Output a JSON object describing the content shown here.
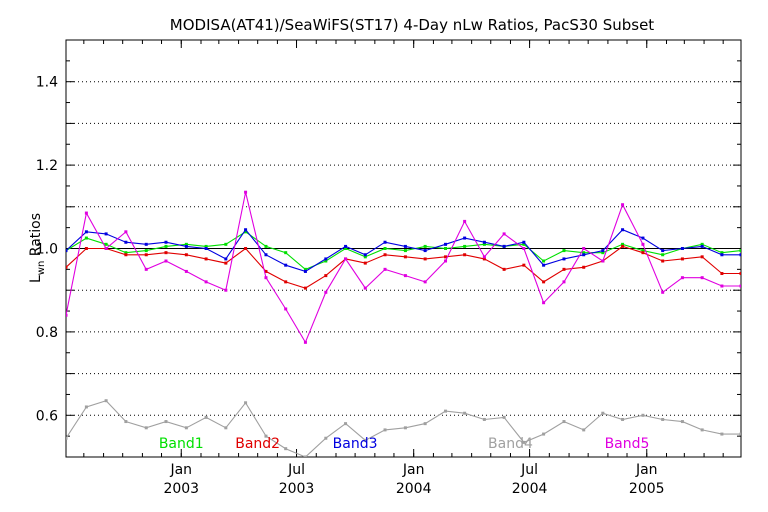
{
  "chart_data": {
    "type": "line",
    "title": "MODISA(AT41)/SeaWiFS(ST17) 4-Day nLw Ratios, PacS30 Subset",
    "ylabel": {
      "base": "L",
      "sub": "wn",
      "rest": " Ratios"
    },
    "ylim": [
      0.5,
      1.5
    ],
    "xlim": [
      "2002-07-04",
      "2005-05-29"
    ],
    "yticks": [
      "0.6",
      "0.8",
      "1.0",
      "1.2",
      "1.4"
    ],
    "xticks": [
      {
        "date": "2003-01-01",
        "month": "Jan",
        "year": "2003"
      },
      {
        "date": "2003-07-01",
        "month": "Jul",
        "year": "2003"
      },
      {
        "date": "2004-01-01",
        "month": "Jan",
        "year": "2004"
      },
      {
        "date": "2004-07-01",
        "month": "Jul",
        "year": "2004"
      },
      {
        "date": "2005-01-01",
        "month": "Jan",
        "year": "2005"
      }
    ],
    "grid": "horizontal dotted",
    "reference_line": 1.0,
    "x": [
      "2002-07-04",
      "2002-08-05",
      "2002-09-05",
      "2002-10-06",
      "2002-11-07",
      "2002-12-08",
      "2003-01-09",
      "2003-02-09",
      "2003-03-12",
      "2003-04-12",
      "2003-05-14",
      "2003-06-14",
      "2003-07-15",
      "2003-08-16",
      "2003-09-16",
      "2003-10-17",
      "2003-11-17",
      "2003-12-19",
      "2004-01-19",
      "2004-02-20",
      "2004-03-21",
      "2004-04-21",
      "2004-05-22",
      "2004-06-22",
      "2004-07-23",
      "2004-08-24",
      "2004-09-24",
      "2004-10-24",
      "2004-11-24",
      "2004-12-26",
      "2005-01-26",
      "2005-02-26",
      "2005-03-29",
      "2005-04-29",
      "2005-05-29"
    ],
    "series": [
      {
        "name": "Band1",
        "color": "#00e000",
        "label_pos": "2003-01-01",
        "values": [
          0.995,
          1.025,
          1.01,
          0.99,
          0.995,
          1.005,
          1.01,
          1.005,
          1.01,
          1.04,
          1.005,
          0.99,
          0.95,
          0.97,
          1.0,
          0.98,
          1.0,
          0.995,
          1.005,
          1.0,
          1.005,
          1.01,
          1.005,
          1.01,
          0.97,
          0.995,
          0.99,
          0.99,
          1.01,
          0.995,
          0.985,
          1.0,
          1.01,
          0.99,
          0.995
        ]
      },
      {
        "name": "Band2",
        "color": "#e00000",
        "label_pos": "2003-05-01",
        "values": [
          0.955,
          1.0,
          1.0,
          0.985,
          0.985,
          0.99,
          0.985,
          0.975,
          0.965,
          1.0,
          0.945,
          0.92,
          0.905,
          0.935,
          0.975,
          0.965,
          0.985,
          0.98,
          0.975,
          0.98,
          0.985,
          0.975,
          0.95,
          0.96,
          0.92,
          0.95,
          0.955,
          0.97,
          1.005,
          0.99,
          0.97,
          0.975,
          0.98,
          0.94,
          0.94
        ]
      },
      {
        "name": "Band3",
        "color": "#0000e0",
        "label_pos": "2003-10-01",
        "values": [
          0.995,
          1.04,
          1.035,
          1.015,
          1.01,
          1.015,
          1.005,
          1.0,
          0.975,
          1.045,
          0.985,
          0.96,
          0.945,
          0.975,
          1.005,
          0.985,
          1.015,
          1.005,
          0.995,
          1.01,
          1.025,
          1.015,
          1.005,
          1.015,
          0.96,
          0.975,
          0.985,
          0.995,
          1.045,
          1.025,
          0.995,
          1.0,
          1.005,
          0.985,
          0.985
        ]
      },
      {
        "name": "Band4",
        "color": "#a0a0a0",
        "label_pos": "2004-06-01",
        "values": [
          0.545,
          0.62,
          0.635,
          0.585,
          0.57,
          0.585,
          0.57,
          0.595,
          0.57,
          0.63,
          0.55,
          0.52,
          0.5,
          0.545,
          0.58,
          0.54,
          0.565,
          0.57,
          0.58,
          0.61,
          0.605,
          0.59,
          0.595,
          0.535,
          0.555,
          0.585,
          0.565,
          0.605,
          0.59,
          0.6,
          0.59,
          0.585,
          0.565,
          0.555,
          0.555
        ]
      },
      {
        "name": "Band5",
        "color": "#e000e0",
        "label_pos": "2004-12-01",
        "values": [
          0.84,
          1.085,
          1.0,
          1.04,
          0.95,
          0.97,
          0.945,
          0.92,
          0.9,
          1.135,
          0.93,
          0.855,
          0.775,
          0.895,
          0.975,
          0.905,
          0.95,
          0.935,
          0.92,
          0.97,
          1.065,
          0.98,
          1.035,
          1.0,
          0.87,
          0.92,
          1.0,
          0.97,
          1.105,
          1.01,
          0.895,
          0.93,
          0.93,
          0.91,
          0.91
        ]
      }
    ]
  }
}
